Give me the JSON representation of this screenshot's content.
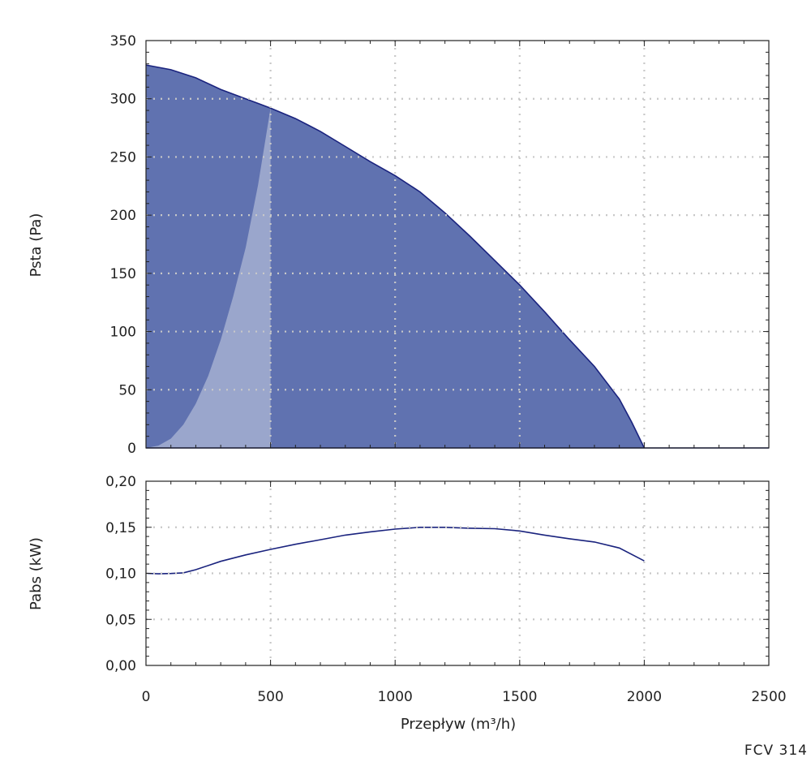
{
  "chart_data": [
    {
      "type": "area",
      "ylabel": "Psta (Pa)",
      "xlim": [
        0,
        2500
      ],
      "ylim": [
        0,
        350
      ],
      "x_ticks": [
        0,
        500,
        1000,
        1500,
        2000,
        2500
      ],
      "y_ticks": [
        0,
        50,
        100,
        150,
        200,
        250,
        300,
        350
      ],
      "y_tick_labels": [
        "0",
        "50",
        "100",
        "150",
        "200",
        "250",
        "300",
        "350"
      ],
      "grid": true,
      "series": [
        {
          "x": [
            0,
            100,
            200,
            300,
            400,
            500,
            600,
            700,
            800,
            900,
            1000,
            1100,
            1200,
            1300,
            1400,
            1500,
            1600,
            1700,
            1800,
            1900,
            1950,
            2000
          ],
          "y": [
            329,
            325,
            318,
            308,
            300,
            292,
            283,
            272,
            259,
            246,
            234,
            220,
            202,
            182,
            161,
            140,
            117,
            93,
            70,
            42,
            22,
            0
          ],
          "color": "#6072b0"
        },
        {
          "x": [
            0,
            50,
            100,
            150,
            200,
            250,
            300,
            350,
            400,
            450,
            500
          ],
          "y": [
            0,
            2,
            8,
            20,
            38,
            62,
            93,
            130,
            172,
            226,
            292
          ],
          "color": "#9aa6cc"
        }
      ]
    },
    {
      "type": "line",
      "xlabel": "Przepływ (m³/h)",
      "ylabel": "Pabs (kW)",
      "xlim": [
        0,
        2500
      ],
      "ylim": [
        0,
        0.2
      ],
      "x_ticks": [
        0,
        500,
        1000,
        1500,
        2000,
        2500
      ],
      "x_tick_labels": [
        "0",
        "500",
        "1000",
        "1500",
        "2000",
        "2500"
      ],
      "y_ticks": [
        0,
        0.05,
        0.1,
        0.15,
        0.2
      ],
      "y_tick_labels": [
        "0,00",
        "0,05",
        "0,10",
        "0,15",
        "0,20"
      ],
      "grid": true,
      "series": [
        {
          "x": [
            0,
            50,
            100,
            150,
            200,
            300,
            400,
            500,
            600,
            700,
            800,
            900,
            1000,
            1100,
            1200,
            1300,
            1400,
            1500,
            1600,
            1700,
            1800,
            1900,
            2000
          ],
          "y": [
            0.1,
            0.0995,
            0.0998,
            0.1005,
            0.104,
            0.113,
            0.12,
            0.126,
            0.1315,
            0.1365,
            0.1415,
            0.145,
            0.148,
            0.15,
            0.15,
            0.149,
            0.1485,
            0.146,
            0.1415,
            0.1375,
            0.134,
            0.1275,
            0.1135
          ],
          "color": "#1a237e"
        }
      ]
    }
  ],
  "model_label": "FCV 314"
}
